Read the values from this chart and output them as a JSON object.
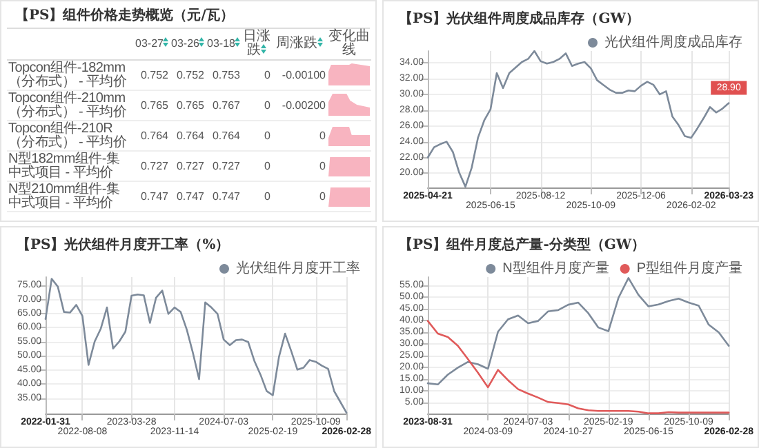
{
  "chart_data": [
    {
      "type": "other",
      "title": "【PS】组件价格走势概览（元/瓦）",
      "annotations": [
        "03-27",
        "03-26",
        "03-18",
        "日涨跌",
        "周涨跌",
        "变化曲线",
        "Topcon组件-182mm（分布式） - 平均价",
        "0.752",
        "0.752",
        "0.753",
        "0",
        "-0.00100",
        "Topcon组件-210mm（分布式） - 平均价",
        "0.765",
        "0.765",
        "0.767",
        "0",
        "-0.00200",
        "Topcon组件-210R（分布式） - 平均价",
        "0.764",
        "0.764",
        "0.764",
        "0",
        "0",
        "N型182mm组件-集中式项目 - 平均价",
        "0.727",
        "0.727",
        "0.727",
        "0",
        "0",
        "N型210mm组件-集中式项目 - 平均价",
        "0.747",
        "0.747",
        "0.747",
        "0",
        "0"
      ]
    },
    {
      "type": "line",
      "title": "【PS】光伏组件周度成品库存（GW）",
      "legend": "top right",
      "grid": true,
      "marker": "none",
      "line_style": "solid",
      "categories": [
        "2025-04-21",
        null,
        null,
        null,
        null,
        null,
        null,
        null,
        null,
        null,
        "2025-06-15",
        null,
        null,
        null,
        null,
        null,
        null,
        null,
        "2025-08-12",
        null,
        null,
        null,
        null,
        null,
        null,
        null,
        "2025-10-09",
        null,
        null,
        null,
        null,
        null,
        null,
        null,
        "2025-12-06",
        null,
        null,
        null,
        null,
        null,
        null,
        null,
        "2026-02-02",
        null,
        null,
        null,
        null,
        null,
        "2026-03-23"
      ],
      "ylim": [
        18.2,
        35.5
      ],
      "yticks": [
        {
          "value": 20,
          "label": "20.00"
        },
        {
          "value": 22,
          "label": "22.00"
        },
        {
          "value": 24,
          "label": "24.00"
        },
        {
          "value": 26,
          "label": "26.00"
        },
        {
          "value": 28,
          "label": "28.00"
        },
        {
          "value": 30,
          "label": "30.00"
        },
        {
          "value": 32,
          "label": "32.00"
        },
        {
          "value": 34,
          "label": "34.00"
        }
      ],
      "annotations": [
        {
          "text": "28.90",
          "x": "2026-03-23",
          "y": 28.9
        }
      ],
      "series": [
        {
          "name": "光伏组件周度成品库存",
          "color": "#7d8a9a",
          "values": [
            22.0,
            23.3,
            23.7,
            24.0,
            22.7,
            20.1,
            18.3,
            20.7,
            24.5,
            26.7,
            28.1,
            32.7,
            30.8,
            32.7,
            33.4,
            34.1,
            34.5,
            35.5,
            34.2,
            33.9,
            34.1,
            34.5,
            35.2,
            33.6,
            33.9,
            34.1,
            33.3,
            31.8,
            31.2,
            30.6,
            30.2,
            30.2,
            30.5,
            30.4,
            31.1,
            31.6,
            31.2,
            30.0,
            30.4,
            27.2,
            26.1,
            24.7,
            24.5,
            25.7,
            27.0,
            28.4,
            27.7,
            28.2,
            28.9
          ]
        }
      ]
    },
    {
      "type": "line",
      "title": "【PS】光伏组件月度开工率（%）",
      "legend": "top right",
      "grid": true,
      "marker": "none",
      "line_style": "solid",
      "categories": [
        "2022-01-31",
        null,
        null,
        null,
        null,
        null,
        "2022-08-08",
        null,
        null,
        null,
        null,
        null,
        null,
        null,
        "2023-03-28",
        null,
        null,
        null,
        null,
        null,
        null,
        "2023-11-14",
        null,
        null,
        null,
        null,
        null,
        null,
        null,
        "2024-07-03",
        null,
        null,
        null,
        null,
        null,
        null,
        null,
        "2025-02-19",
        null,
        null,
        null,
        null,
        null,
        null,
        "2025-10-09",
        null,
        null,
        null,
        null,
        "2026-02-28"
      ],
      "ylim": [
        29.5,
        78
      ],
      "yticks": [
        {
          "value": 35,
          "label": "35.00"
        },
        {
          "value": 40,
          "label": "40.00"
        },
        {
          "value": 45,
          "label": "45.00"
        },
        {
          "value": 50,
          "label": "50.00"
        },
        {
          "value": 55,
          "label": "55.00"
        },
        {
          "value": 60,
          "label": "60.00"
        },
        {
          "value": 65,
          "label": "65.00"
        },
        {
          "value": 70,
          "label": "70.00"
        },
        {
          "value": 75,
          "label": "75.00"
        }
      ],
      "series": [
        {
          "name": "光伏组件月度开工率",
          "color": "#7d8a9a",
          "values": [
            63.1,
            77.4,
            74.6,
            65.6,
            65.4,
            68.1,
            64.2,
            46.8,
            55.1,
            59.7,
            67.2,
            52.6,
            55.1,
            58.6,
            71.4,
            71.8,
            71.5,
            61.7,
            70.7,
            73.2,
            64.9,
            67.2,
            65.6,
            59.3,
            51.0,
            41.7,
            69.0,
            67.2,
            64.9,
            55.8,
            53.8,
            55.6,
            55.8,
            54.9,
            48.2,
            43.3,
            37.5,
            36.0,
            49.6,
            57.9,
            51.7,
            45.1,
            45.8,
            48.5,
            47.9,
            46.5,
            45.4,
            37.4,
            33.6,
            29.8
          ]
        }
      ]
    },
    {
      "type": "line",
      "title": "【PS】组件月度总产量-分类型（GW）",
      "legend": "top right",
      "grid": true,
      "marker": "none",
      "line_style": "solid",
      "categories": [
        "2023-08-31",
        null,
        null,
        null,
        null,
        null,
        "2024-03-09",
        null,
        null,
        null,
        "2024-07-03",
        null,
        null,
        null,
        "2024-10-27",
        null,
        null,
        null,
        "2025-02-19",
        null,
        null,
        null,
        "2025-06-15",
        null,
        null,
        null,
        "2025-10-09",
        null,
        null,
        null,
        "2026-02-28"
      ],
      "ylim": [
        0.3,
        58.5
      ],
      "yticks": [
        {
          "value": 5,
          "label": "5.00"
        },
        {
          "value": 10,
          "label": "10.00"
        },
        {
          "value": 15,
          "label": "15.00"
        },
        {
          "value": 20,
          "label": "20.00"
        },
        {
          "value": 25,
          "label": "25.00"
        },
        {
          "value": 30,
          "label": "30.00"
        },
        {
          "value": 35,
          "label": "35.00"
        },
        {
          "value": 40,
          "label": "40.00"
        },
        {
          "value": 45,
          "label": "45.00"
        },
        {
          "value": 50,
          "label": "50.00"
        },
        {
          "value": 55,
          "label": "55.00"
        }
      ],
      "series": [
        {
          "name": "N型组件月度产量",
          "color": "#7d8a9a",
          "values": [
            13.2,
            12.7,
            16.9,
            19.9,
            22.3,
            21.3,
            19.4,
            35.2,
            40.5,
            42.1,
            38.8,
            39.8,
            43.9,
            44.4,
            46.7,
            47.6,
            43.1,
            37.0,
            35.4,
            49.6,
            58.1,
            50.9,
            46.0,
            46.8,
            48.3,
            49.3,
            47.6,
            46.3,
            38.2,
            34.9,
            29.2
          ]
        },
        {
          "name": "P型组件月度产量",
          "color": "#e05a5a",
          "values": [
            39.8,
            34.4,
            32.9,
            29.2,
            23.5,
            17.7,
            11.5,
            18.9,
            14.5,
            10.7,
            8.8,
            7.1,
            5.2,
            4.8,
            4.2,
            2.5,
            1.7,
            1.4,
            1.4,
            1.4,
            1.4,
            1.1,
            0.4,
            0.4,
            0.9,
            0.7,
            0.7,
            0.7,
            0.7,
            0.7,
            0.7
          ]
        }
      ]
    }
  ]
}
